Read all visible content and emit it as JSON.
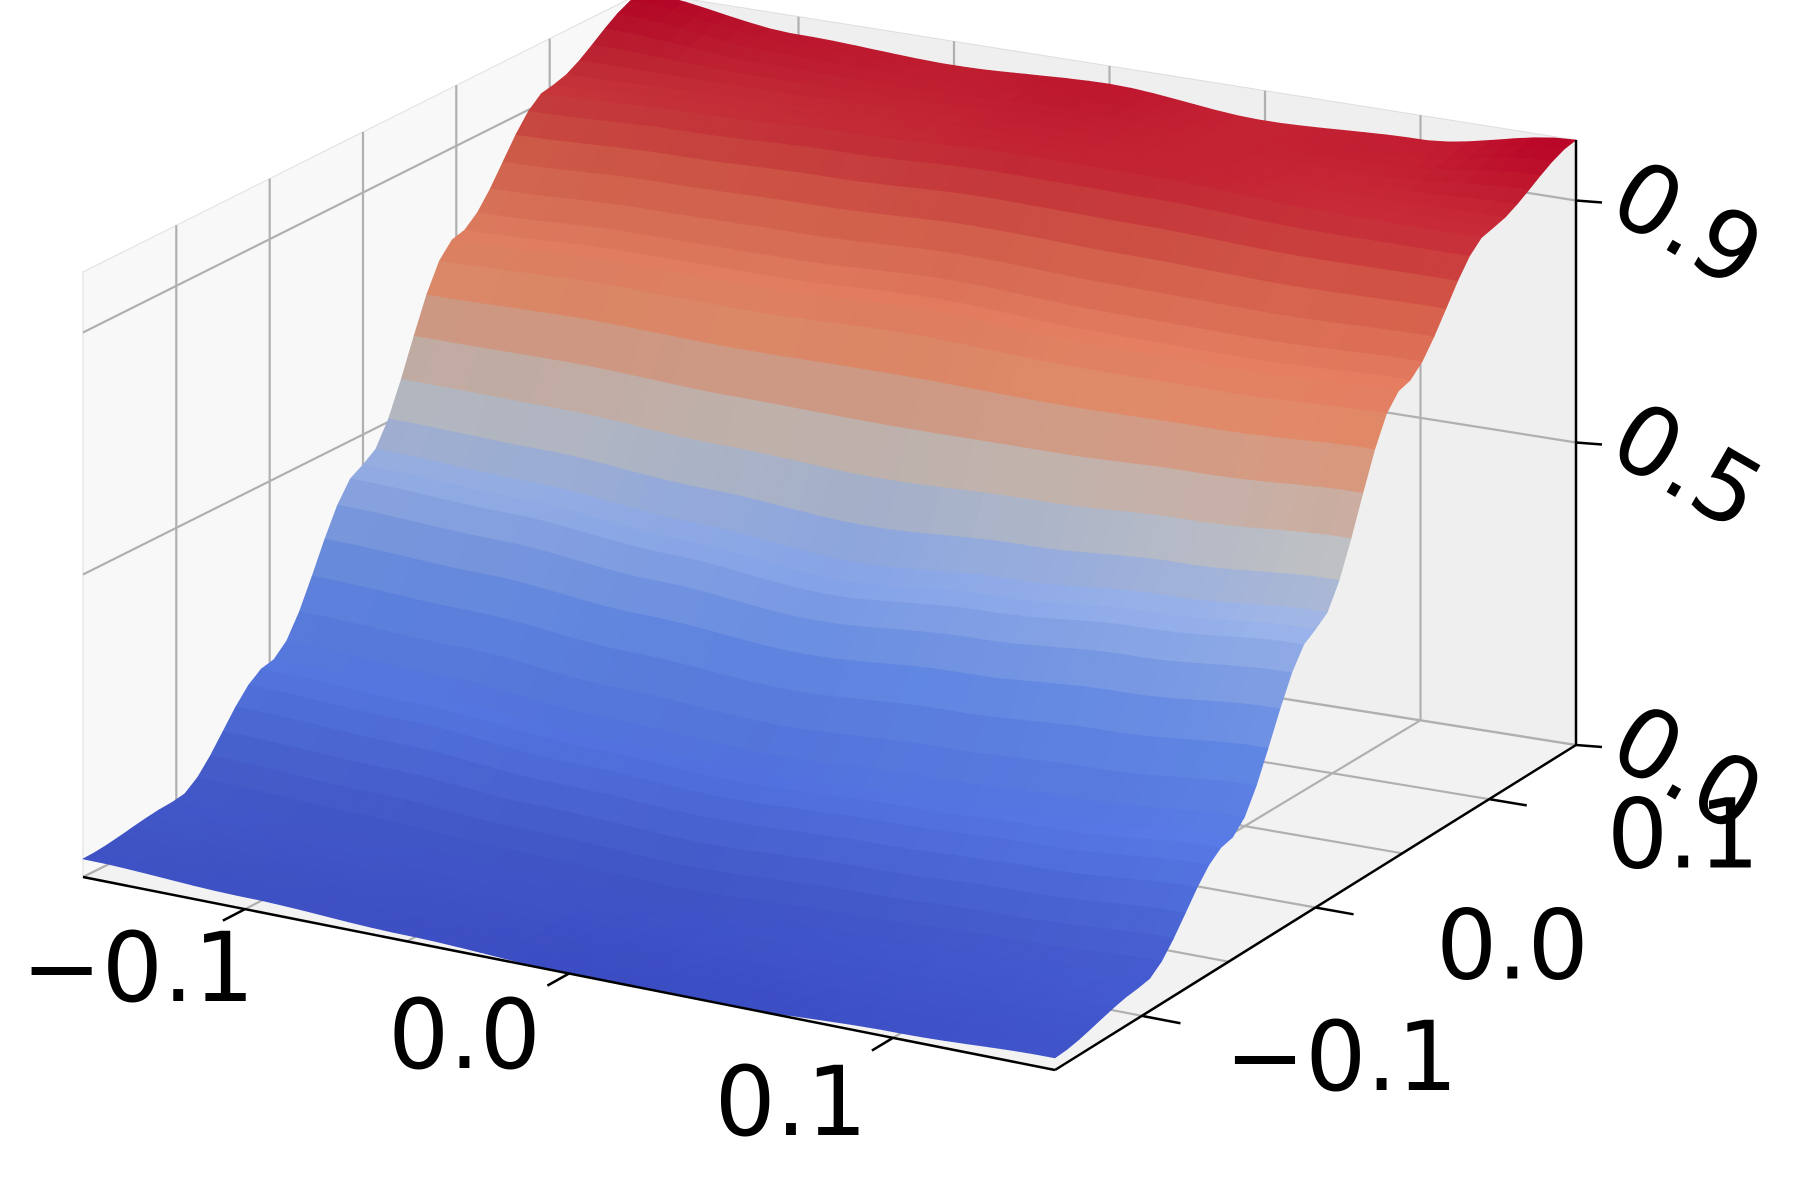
{
  "chart_data": {
    "type": "surface3d",
    "title": "",
    "xlabel": "",
    "ylabel": "",
    "zlabel": "",
    "xlim": [
      -0.15,
      0.15
    ],
    "ylim": [
      -0.15,
      0.15
    ],
    "zlim": [
      0.0,
      1.0
    ],
    "x_ticks": [
      {
        "value": -0.1,
        "label": "−0.1"
      },
      {
        "value": 0.0,
        "label": "0.0"
      },
      {
        "value": 0.1,
        "label": "0.1"
      }
    ],
    "y_ticks": [
      {
        "value": -0.1,
        "label": "−0.1"
      },
      {
        "value": 0.0,
        "label": "0.0"
      },
      {
        "value": 0.1,
        "label": "0.1"
      }
    ],
    "z_ticks": [
      {
        "value": 0.0,
        "label": "0.0"
      },
      {
        "value": 0.5,
        "label": "0.5"
      },
      {
        "value": 0.9,
        "label": "0.9"
      }
    ],
    "grid": true,
    "colormap": "coolwarm",
    "surface": {
      "x": [
        -0.15,
        -0.1,
        -0.05,
        0.0,
        0.05,
        0.1,
        0.15
      ],
      "y": [
        -0.15,
        -0.1,
        -0.05,
        0.0,
        0.05,
        0.1,
        0.15
      ],
      "z_by_y": [
        [
          0.03,
          0.02,
          0.01,
          0.0,
          0.0,
          0.01,
          0.02
        ],
        [
          0.05,
          0.04,
          0.03,
          0.02,
          0.03,
          0.04,
          0.05
        ],
        [
          0.2,
          0.19,
          0.17,
          0.16,
          0.17,
          0.18,
          0.2
        ],
        [
          0.45,
          0.44,
          0.42,
          0.4,
          0.42,
          0.44,
          0.46
        ],
        [
          0.75,
          0.76,
          0.76,
          0.77,
          0.76,
          0.76,
          0.77
        ],
        [
          0.92,
          0.93,
          0.94,
          0.95,
          0.95,
          0.94,
          0.94
        ],
        [
          1.0,
          0.97,
          0.96,
          0.97,
          0.95,
          0.96,
          1.0
        ]
      ]
    }
  }
}
